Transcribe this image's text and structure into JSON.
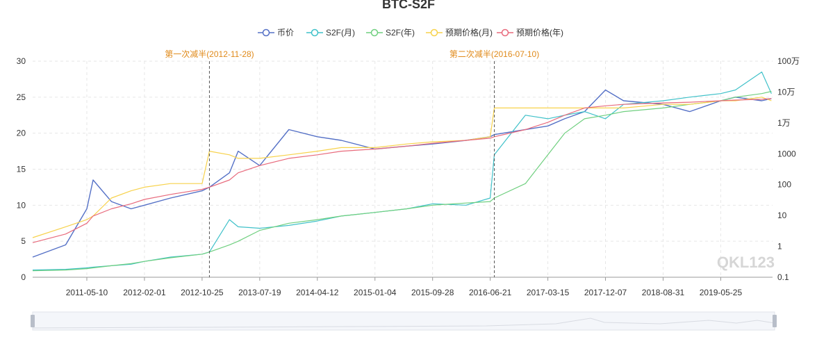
{
  "colors": {
    "price": "#5470c6",
    "s2f_month": "#3fc1c9",
    "s2f_year": "#6fcf7f",
    "expected_month": "#f7d24b",
    "expected_year": "#e86a7c",
    "halving_label": "#e08a1a",
    "axis_text": "#333333",
    "grid": "#e6e6e6",
    "watermark": "#d6d6d6"
  },
  "watermark": "QKL123",
  "chart_data": {
    "type": "line",
    "title": "BTC-S2F",
    "legend_position": "top-center",
    "grid": true,
    "x": [
      "2010-09-01",
      "2011-02-01",
      "2011-05-10",
      "2011-06-08",
      "2011-09-01",
      "2011-12-01",
      "2012-02-01",
      "2012-06-01",
      "2012-10-25",
      "2012-11-28",
      "2013-03-01",
      "2013-04-10",
      "2013-07-19",
      "2013-12-01",
      "2014-04-12",
      "2014-08-01",
      "2015-01-04",
      "2015-06-01",
      "2015-09-28",
      "2016-03-01",
      "2016-06-21",
      "2016-07-10",
      "2016-12-01",
      "2017-03-15",
      "2017-06-01",
      "2017-09-01",
      "2017-12-07",
      "2018-03-01",
      "2018-08-31",
      "2019-01-01",
      "2019-05-25",
      "2019-08-01",
      "2019-12-01",
      "2020-01-15"
    ],
    "x_ticks": [
      "2011-05-10",
      "2012-02-01",
      "2012-10-25",
      "2013-07-19",
      "2014-04-12",
      "2015-01-04",
      "2015-09-28",
      "2016-06-21",
      "2017-03-15",
      "2017-12-07",
      "2018-08-31",
      "2019-05-25"
    ],
    "y_left": {
      "min": 0,
      "max": 30,
      "ticks": [
        0,
        5,
        10,
        15,
        20,
        25,
        30
      ]
    },
    "y_right": {
      "scale": "log",
      "min": 0.1,
      "max": 1000000,
      "ticks": [
        0.1,
        1,
        10,
        100,
        1000,
        10000,
        100000,
        1000000
      ],
      "tick_labels": [
        "0.1",
        "1",
        "10",
        "100",
        "1000",
        "1万",
        "10万",
        "100万"
      ]
    },
    "series": [
      {
        "name": "币价",
        "values": [
          2.8,
          4.5,
          9.5,
          13.5,
          10.5,
          9.5,
          10.0,
          11.0,
          12.0,
          12.5,
          14.5,
          17.5,
          15.5,
          20.5,
          19.5,
          19.0,
          17.8,
          18.2,
          18.5,
          19.0,
          19.5,
          19.8,
          20.5,
          21.0,
          22.0,
          23.0,
          26.0,
          24.5,
          24.0,
          23.0,
          24.5,
          25.0,
          24.5,
          24.8
        ]
      },
      {
        "name": "S2F(月)",
        "values": [
          1.0,
          1.1,
          1.3,
          1.4,
          1.6,
          1.8,
          2.2,
          2.8,
          3.2,
          3.5,
          8.0,
          7.0,
          6.8,
          7.2,
          7.8,
          8.5,
          9.0,
          9.5,
          10.2,
          10.0,
          11.0,
          17.0,
          22.5,
          22.0,
          22.5,
          23.0,
          22.0,
          24.0,
          24.5,
          25.0,
          25.5,
          26.0,
          28.5,
          25.5
        ]
      },
      {
        "name": "S2F(年)",
        "values": [
          0.9,
          1.0,
          1.2,
          1.3,
          1.6,
          1.9,
          2.2,
          2.7,
          3.2,
          3.5,
          4.5,
          5.0,
          6.5,
          7.5,
          8.0,
          8.5,
          9.0,
          9.5,
          10.0,
          10.3,
          10.5,
          11.0,
          13.0,
          17.0,
          20.0,
          22.0,
          22.5,
          23.0,
          23.5,
          24.0,
          24.5,
          25.0,
          25.5,
          25.8
        ]
      },
      {
        "name": "预期价格(月)",
        "values": [
          5.5,
          7.0,
          8.0,
          8.5,
          11.0,
          12.0,
          12.5,
          13.0,
          13.0,
          17.5,
          17.0,
          16.5,
          16.5,
          17.0,
          17.5,
          18.0,
          18.0,
          18.5,
          18.8,
          19.0,
          19.5,
          23.5,
          23.5,
          23.5,
          23.5,
          23.5,
          23.5,
          23.5,
          24.0,
          24.0,
          24.5,
          24.5,
          25.0,
          24.5
        ]
      },
      {
        "name": "预期价格(年)",
        "values": [
          4.8,
          6.0,
          7.5,
          8.5,
          9.5,
          10.2,
          10.8,
          11.5,
          12.2,
          12.5,
          13.5,
          14.5,
          15.5,
          16.5,
          17.0,
          17.5,
          17.8,
          18.2,
          18.6,
          19.0,
          19.3,
          19.5,
          20.5,
          21.5,
          22.5,
          23.5,
          23.8,
          24.0,
          24.2,
          24.3,
          24.5,
          24.6,
          24.7,
          24.8
        ]
      }
    ],
    "annotations": [
      {
        "label": "第一次减半(2012-11-28)",
        "x": "2012-11-28"
      },
      {
        "label": "第二次减半(2016-07-10)",
        "x": "2016-07-10"
      }
    ]
  }
}
